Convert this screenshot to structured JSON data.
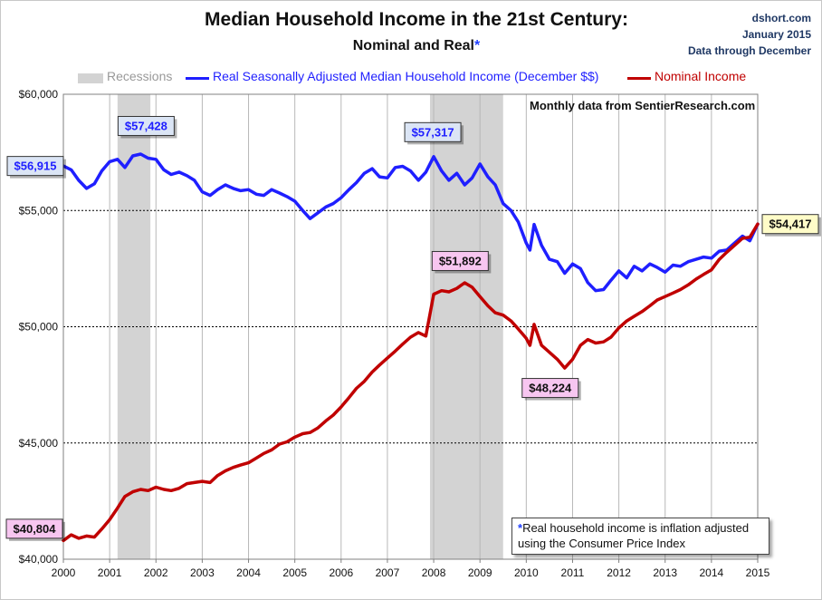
{
  "chart_data": {
    "type": "line",
    "title": "Median Household Income in the 21st Century:",
    "subtitle": "Nominal and Real",
    "subtitle_marker": "*",
    "source_lines": [
      "dshort.com",
      "January 2015",
      "Data through December"
    ],
    "source_annotation": "Monthly data from SentierResearch.com",
    "footnote_marker": "*",
    "footnote_text": "Real household  income is inflation adjusted",
    "footnote_text2": "using  the Consumer Price Index",
    "legend": {
      "recessions_label": "Recessions",
      "real_label": "Real Seasonally Adjusted Median Household Income (December $$)",
      "nominal_label": "Nominal Income"
    },
    "colors": {
      "real": "#1f1fff",
      "nominal": "#c00000",
      "recession": "#d3d3d3",
      "grid": "#000000"
    },
    "xlim": [
      2000,
      2015
    ],
    "ylim": [
      40000,
      60000
    ],
    "x_ticks": [
      2000,
      2001,
      2002,
      2003,
      2004,
      2005,
      2006,
      2007,
      2008,
      2009,
      2010,
      2011,
      2012,
      2013,
      2014,
      2015
    ],
    "y_ticks": [
      40000,
      45000,
      50000,
      55000,
      60000
    ],
    "y_tick_labels": [
      "$40,000",
      "$45,000",
      "$50,000",
      "$55,000",
      "$60,000"
    ],
    "grid": "horizontal dashed",
    "recessions": [
      [
        2001.17,
        2001.88
      ],
      [
        2007.92,
        2009.5
      ]
    ],
    "series": [
      {
        "name": "Real Seasonally Adjusted Median Household Income (December $$)",
        "key": "real",
        "x": [
          2000.0,
          2000.17,
          2000.33,
          2000.5,
          2000.67,
          2000.83,
          2001.0,
          2001.17,
          2001.33,
          2001.5,
          2001.67,
          2001.83,
          2002.0,
          2002.17,
          2002.33,
          2002.5,
          2002.67,
          2002.83,
          2003.0,
          2003.17,
          2003.33,
          2003.5,
          2003.67,
          2003.83,
          2004.0,
          2004.17,
          2004.33,
          2004.5,
          2004.67,
          2004.83,
          2005.0,
          2005.17,
          2005.33,
          2005.5,
          2005.67,
          2005.83,
          2006.0,
          2006.17,
          2006.33,
          2006.5,
          2006.67,
          2006.83,
          2007.0,
          2007.17,
          2007.33,
          2007.5,
          2007.67,
          2007.83,
          2008.0,
          2008.17,
          2008.33,
          2008.5,
          2008.67,
          2008.83,
          2009.0,
          2009.17,
          2009.33,
          2009.5,
          2009.67,
          2009.83,
          2010.0,
          2010.08,
          2010.17,
          2010.33,
          2010.5,
          2010.67,
          2010.83,
          2011.0,
          2011.17,
          2011.33,
          2011.5,
          2011.67,
          2011.83,
          2012.0,
          2012.17,
          2012.33,
          2012.5,
          2012.67,
          2012.83,
          2013.0,
          2013.17,
          2013.33,
          2013.5,
          2013.67,
          2013.83,
          2014.0,
          2014.17,
          2014.33,
          2014.5,
          2014.67,
          2014.83,
          2015.0
        ],
        "y": [
          56915,
          56750,
          56300,
          55950,
          56150,
          56700,
          57100,
          57200,
          56850,
          57350,
          57428,
          57250,
          57200,
          56750,
          56550,
          56650,
          56500,
          56300,
          55800,
          55650,
          55900,
          56100,
          55950,
          55850,
          55900,
          55700,
          55650,
          55900,
          55750,
          55600,
          55400,
          55000,
          54650,
          54900,
          55150,
          55300,
          55550,
          55900,
          56200,
          56600,
          56800,
          56450,
          56400,
          56850,
          56900,
          56700,
          56300,
          56650,
          57317,
          56700,
          56300,
          56600,
          56100,
          56400,
          57000,
          56450,
          56100,
          55300,
          55000,
          54500,
          53600,
          53300,
          54400,
          53500,
          52900,
          52800,
          52300,
          52700,
          52500,
          51900,
          51550,
          51600,
          52000,
          52400,
          52100,
          52600,
          52400,
          52700,
          52550,
          52350,
          52650,
          52600,
          52800,
          52900,
          53000,
          52950,
          53250,
          53300,
          53600,
          53900,
          53700,
          54417
        ]
      },
      {
        "name": "Nominal Income",
        "key": "nominal",
        "x": [
          2000.0,
          2000.17,
          2000.33,
          2000.5,
          2000.67,
          2000.83,
          2001.0,
          2001.17,
          2001.33,
          2001.5,
          2001.67,
          2001.83,
          2002.0,
          2002.17,
          2002.33,
          2002.5,
          2002.67,
          2002.83,
          2003.0,
          2003.17,
          2003.33,
          2003.5,
          2003.67,
          2003.83,
          2004.0,
          2004.17,
          2004.33,
          2004.5,
          2004.67,
          2004.83,
          2005.0,
          2005.17,
          2005.33,
          2005.5,
          2005.67,
          2005.83,
          2006.0,
          2006.17,
          2006.33,
          2006.5,
          2006.67,
          2006.83,
          2007.0,
          2007.17,
          2007.33,
          2007.5,
          2007.67,
          2007.83,
          2008.0,
          2008.17,
          2008.33,
          2008.5,
          2008.67,
          2008.83,
          2009.0,
          2009.17,
          2009.33,
          2009.5,
          2009.67,
          2009.83,
          2010.0,
          2010.08,
          2010.17,
          2010.33,
          2010.5,
          2010.67,
          2010.83,
          2011.0,
          2011.17,
          2011.33,
          2011.5,
          2011.67,
          2011.83,
          2012.0,
          2012.17,
          2012.33,
          2012.5,
          2012.67,
          2012.83,
          2013.0,
          2013.17,
          2013.33,
          2013.5,
          2013.67,
          2013.83,
          2014.0,
          2014.17,
          2014.33,
          2014.5,
          2014.67,
          2014.83,
          2015.0
        ],
        "y": [
          40804,
          41050,
          40900,
          41000,
          40950,
          41300,
          41700,
          42200,
          42700,
          42900,
          43000,
          42950,
          43100,
          43000,
          42950,
          43050,
          43250,
          43300,
          43350,
          43300,
          43600,
          43800,
          43950,
          44050,
          44150,
          44350,
          44550,
          44700,
          44950,
          45050,
          45250,
          45400,
          45450,
          45650,
          45950,
          46200,
          46550,
          46950,
          47350,
          47650,
          48050,
          48350,
          48650,
          48950,
          49250,
          49550,
          49750,
          49600,
          51400,
          51550,
          51500,
          51650,
          51892,
          51700,
          51300,
          50900,
          50600,
          50500,
          50250,
          49900,
          49500,
          49200,
          50100,
          49200,
          48900,
          48600,
          48224,
          48600,
          49200,
          49450,
          49300,
          49350,
          49550,
          49950,
          50250,
          50450,
          50650,
          50900,
          51150,
          51300,
          51450,
          51600,
          51800,
          52050,
          52250,
          52450,
          52900,
          53200,
          53500,
          53800,
          53850,
          54417
        ]
      }
    ],
    "callouts": [
      {
        "series": "real",
        "x": 2000.0,
        "y": 56915,
        "label": "$56,915",
        "style": "blue"
      },
      {
        "series": "real",
        "x": 2001.67,
        "y": 57428,
        "label": "$57,428",
        "style": "blue"
      },
      {
        "series": "real",
        "x": 2008.0,
        "y": 57317,
        "label": "$57,317",
        "style": "blue"
      },
      {
        "series": "nominal",
        "x": 2008.67,
        "y": 51892,
        "label": "$51,892",
        "style": "pink"
      },
      {
        "series": "nominal",
        "x": 2010.83,
        "y": 48224,
        "label": "$48,224",
        "style": "pink"
      },
      {
        "series": "nominal",
        "x": 2000.0,
        "y": 40804,
        "label": "$40,804",
        "style": "pink"
      },
      {
        "series": "both",
        "x": 2015.0,
        "y": 54417,
        "label": "$54,417",
        "style": "yellow"
      }
    ]
  }
}
